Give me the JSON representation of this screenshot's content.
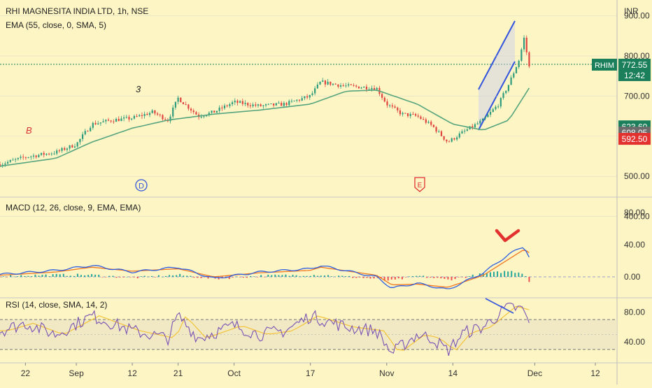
{
  "header": {
    "title": "RHI MAGNESITA INDIA LTD, 1h, NSE",
    "ema_label": "EMA (55, close, 0, SMA, 5)",
    "currency": "INR"
  },
  "price_panel": {
    "ticks": [
      "900.00",
      "800.00",
      "700.00",
      "600.00",
      "500.00",
      "400.00"
    ],
    "tick_values": [
      900,
      800,
      700,
      600,
      500,
      400
    ],
    "symbol_badge": "RHIM",
    "last_price": "772.55",
    "countdown": "12:42",
    "price_tags": [
      {
        "label": "623.60",
        "value": 623.6,
        "color": "#1b7f5b"
      },
      {
        "label": "608.05",
        "value": 608.05,
        "color": "#6b6b6b"
      },
      {
        "label": "592.50",
        "value": 592.5,
        "color": "#e2312f"
      }
    ],
    "annotations": {
      "b_label": "B",
      "three_label": "3",
      "d_label": "D",
      "e_label": "E"
    }
  },
  "macd_panel": {
    "label": "MACD (12, 26, close, 9, EMA, EMA)",
    "ticks": [
      "80.00",
      "40.00",
      "0.00"
    ],
    "tick_values": [
      80,
      40,
      0
    ]
  },
  "rsi_panel": {
    "label": "RSI (14, close, SMA, 14, 2)",
    "ticks": [
      "80.00",
      "40.00"
    ],
    "tick_values": [
      80,
      40
    ],
    "band_upper": 70,
    "band_lower": 30
  },
  "time_axis": {
    "labels": [
      "22",
      "Sep",
      "12",
      "21",
      "Oct",
      "17",
      "Nov",
      "14",
      "Dec",
      "12"
    ]
  },
  "colors": {
    "background": "#fdf5c4",
    "up_candle": "#2e9c7c",
    "down_candle": "#e0443e",
    "ema_line": "#57a57e",
    "channel": "#3355dd",
    "macd_line": "#2f5fe0",
    "signal_line": "#f07a22",
    "rsi_line": "#7a52b4",
    "rsi_ma": "#f3c43a",
    "rsi_band": "#ede6c4",
    "grid": "#cfcfcf"
  },
  "chart_data": {
    "type": "candlestick",
    "series": [
      {
        "name": "price",
        "points": [
          {
            "x": "Aug 17",
            "y": 530
          },
          {
            "x": "Aug 22",
            "y": 548
          },
          {
            "x": "Aug 28",
            "y": 560
          },
          {
            "x": "Sep 1",
            "y": 580
          },
          {
            "x": "Sep 4",
            "y": 630
          },
          {
            "x": "Sep 8",
            "y": 640
          },
          {
            "x": "Sep 12",
            "y": 645
          },
          {
            "x": "Sep 16",
            "y": 660
          },
          {
            "x": "Sep 19",
            "y": 640
          },
          {
            "x": "Sep 21",
            "y": 695
          },
          {
            "x": "Sep 25",
            "y": 650
          },
          {
            "x": "Sep 28",
            "y": 660
          },
          {
            "x": "Oct 2",
            "y": 685
          },
          {
            "x": "Oct 7",
            "y": 675
          },
          {
            "x": "Oct 12",
            "y": 680
          },
          {
            "x": "Oct 17",
            "y": 700
          },
          {
            "x": "Oct 19",
            "y": 735
          },
          {
            "x": "Oct 24",
            "y": 725
          },
          {
            "x": "Oct 30",
            "y": 720
          },
          {
            "x": "Nov 1",
            "y": 680
          },
          {
            "x": "Nov 4",
            "y": 655
          },
          {
            "x": "Nov 7",
            "y": 650
          },
          {
            "x": "Nov 10",
            "y": 625
          },
          {
            "x": "Nov 13",
            "y": 585
          },
          {
            "x": "Nov 16",
            "y": 610
          },
          {
            "x": "Nov 20",
            "y": 640
          },
          {
            "x": "Nov 23",
            "y": 680
          },
          {
            "x": "Nov 25",
            "y": 730
          },
          {
            "x": "Nov 27",
            "y": 790
          },
          {
            "x": "Nov 28",
            "y": 845
          },
          {
            "x": "Nov 29",
            "y": 772.55
          }
        ]
      },
      {
        "name": "ema",
        "points": [
          {
            "x": "Aug 17",
            "y": 525
          },
          {
            "x": "Aug 28",
            "y": 545
          },
          {
            "x": "Sep 4",
            "y": 585
          },
          {
            "x": "Sep 12",
            "y": 620
          },
          {
            "x": "Sep 19",
            "y": 640
          },
          {
            "x": "Sep 28",
            "y": 655
          },
          {
            "x": "Oct 7",
            "y": 665
          },
          {
            "x": "Oct 17",
            "y": 680
          },
          {
            "x": "Oct 24",
            "y": 712
          },
          {
            "x": "Oct 30",
            "y": 715
          },
          {
            "x": "Nov 7",
            "y": 680
          },
          {
            "x": "Nov 14",
            "y": 630
          },
          {
            "x": "Nov 20",
            "y": 615
          },
          {
            "x": "Nov 25",
            "y": 640
          },
          {
            "x": "Nov 29",
            "y": 720
          }
        ]
      },
      {
        "name": "macd",
        "points": [
          {
            "x": "Aug 17",
            "y": 3
          },
          {
            "x": "Aug 28",
            "y": 8
          },
          {
            "x": "Sep 4",
            "y": 14
          },
          {
            "x": "Sep 12",
            "y": 6
          },
          {
            "x": "Sep 21",
            "y": 12
          },
          {
            "x": "Sep 28",
            "y": -2
          },
          {
            "x": "Oct 7",
            "y": 6
          },
          {
            "x": "Oct 17",
            "y": 10
          },
          {
            "x": "Oct 19",
            "y": 14
          },
          {
            "x": "Oct 30",
            "y": 0
          },
          {
            "x": "Nov 2",
            "y": -14
          },
          {
            "x": "Nov 7",
            "y": -8
          },
          {
            "x": "Nov 13",
            "y": -16
          },
          {
            "x": "Nov 20",
            "y": 5
          },
          {
            "x": "Nov 25",
            "y": 28
          },
          {
            "x": "Nov 28",
            "y": 38
          },
          {
            "x": "Nov 29",
            "y": 25
          }
        ]
      },
      {
        "name": "signal",
        "points": [
          {
            "x": "Aug 17",
            "y": 2
          },
          {
            "x": "Aug 28",
            "y": 6
          },
          {
            "x": "Sep 4",
            "y": 12
          },
          {
            "x": "Sep 12",
            "y": 7
          },
          {
            "x": "Sep 21",
            "y": 10
          },
          {
            "x": "Sep 28",
            "y": 0
          },
          {
            "x": "Oct 7",
            "y": 5
          },
          {
            "x": "Oct 17",
            "y": 8
          },
          {
            "x": "Oct 19",
            "y": 12
          },
          {
            "x": "Oct 30",
            "y": 2
          },
          {
            "x": "Nov 2",
            "y": -10
          },
          {
            "x": "Nov 7",
            "y": -9
          },
          {
            "x": "Nov 13",
            "y": -13
          },
          {
            "x": "Nov 20",
            "y": 2
          },
          {
            "x": "Nov 25",
            "y": 22
          },
          {
            "x": "Nov 28",
            "y": 34
          },
          {
            "x": "Nov 29",
            "y": 30
          }
        ]
      },
      {
        "name": "rsi",
        "points": [
          {
            "x": "Aug 17",
            "y": 55
          },
          {
            "x": "Aug 22",
            "y": 65
          },
          {
            "x": "Aug 28",
            "y": 50
          },
          {
            "x": "Sep 4",
            "y": 75
          },
          {
            "x": "Sep 12",
            "y": 55
          },
          {
            "x": "Sep 19",
            "y": 45
          },
          {
            "x": "Sep 21",
            "y": 75
          },
          {
            "x": "Sep 25",
            "y": 45
          },
          {
            "x": "Oct 2",
            "y": 62
          },
          {
            "x": "Oct 7",
            "y": 50
          },
          {
            "x": "Oct 12",
            "y": 55
          },
          {
            "x": "Oct 17",
            "y": 75
          },
          {
            "x": "Oct 24",
            "y": 60
          },
          {
            "x": "Oct 30",
            "y": 55
          },
          {
            "x": "Nov 2",
            "y": 25
          },
          {
            "x": "Nov 7",
            "y": 50
          },
          {
            "x": "Nov 10",
            "y": 45
          },
          {
            "x": "Nov 13",
            "y": 28
          },
          {
            "x": "Nov 16",
            "y": 52
          },
          {
            "x": "Nov 20",
            "y": 60
          },
          {
            "x": "Nov 25",
            "y": 88
          },
          {
            "x": "Nov 28",
            "y": 82
          },
          {
            "x": "Nov 29",
            "y": 62
          }
        ]
      }
    ]
  }
}
